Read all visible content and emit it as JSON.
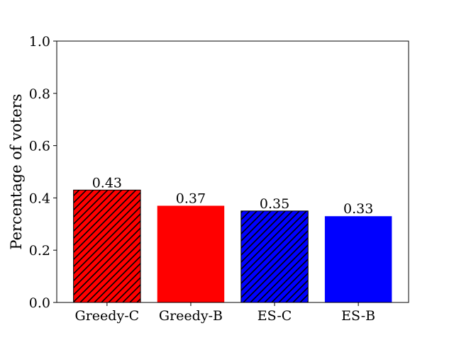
{
  "chart_data": {
    "type": "bar",
    "title": "",
    "xlabel": "",
    "ylabel": "Percentage of voters",
    "ylim": [
      0,
      1.0
    ],
    "yticks": [
      "0.0",
      "0.2",
      "0.4",
      "0.6",
      "0.8",
      "1.0"
    ],
    "grid": false,
    "categories": [
      "Greedy-C",
      "Greedy-B",
      "ES-C",
      "ES-B"
    ],
    "values": [
      0.43,
      0.37,
      0.35,
      0.33
    ],
    "value_labels": [
      "0.43",
      "0.37",
      "0.35",
      "0.33"
    ],
    "bar_colors": [
      "#ff0000",
      "#ff0000",
      "#0000ff",
      "#0000ff"
    ],
    "hatched": [
      true,
      false,
      true,
      false
    ]
  }
}
